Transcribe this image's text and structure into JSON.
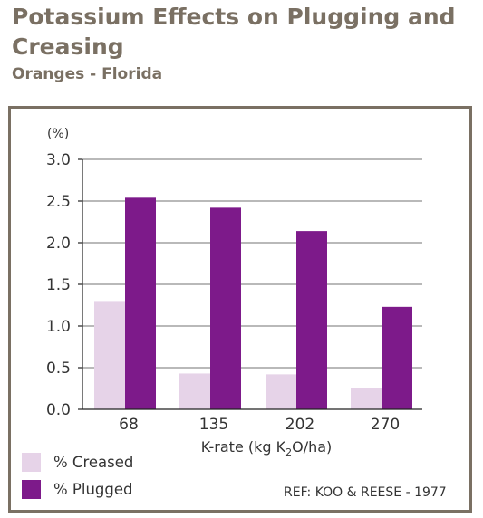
{
  "header": {
    "title": "Potassium Effects on Plugging and Creasing",
    "subtitle": "Oranges - Florida"
  },
  "reference": "REF: KOO & REESE - 1977",
  "colors": {
    "creased": "#e6d3e8",
    "plugged": "#7d1a8a",
    "frame": "#7a7063"
  },
  "chart_data": {
    "type": "bar",
    "categories": [
      "68",
      "135",
      "202",
      "270"
    ],
    "series": [
      {
        "name": "% Creased",
        "values": [
          1.3,
          0.43,
          0.42,
          0.25
        ]
      },
      {
        "name": "% Plugged",
        "values": [
          2.54,
          2.42,
          2.14,
          1.23
        ]
      }
    ],
    "ylabel": "(%)",
    "xlabel": "K-rate (kg K2O/ha)",
    "xlabel_parts": [
      "K-rate (kg K",
      "2",
      "O/ha)"
    ],
    "yticks": [
      "0.0",
      "0.5",
      "1.0",
      "1.5",
      "2.0",
      "2.5",
      "3.0"
    ],
    "ylim": [
      0,
      3
    ],
    "grid": true,
    "legend_position": "bottom-left"
  }
}
